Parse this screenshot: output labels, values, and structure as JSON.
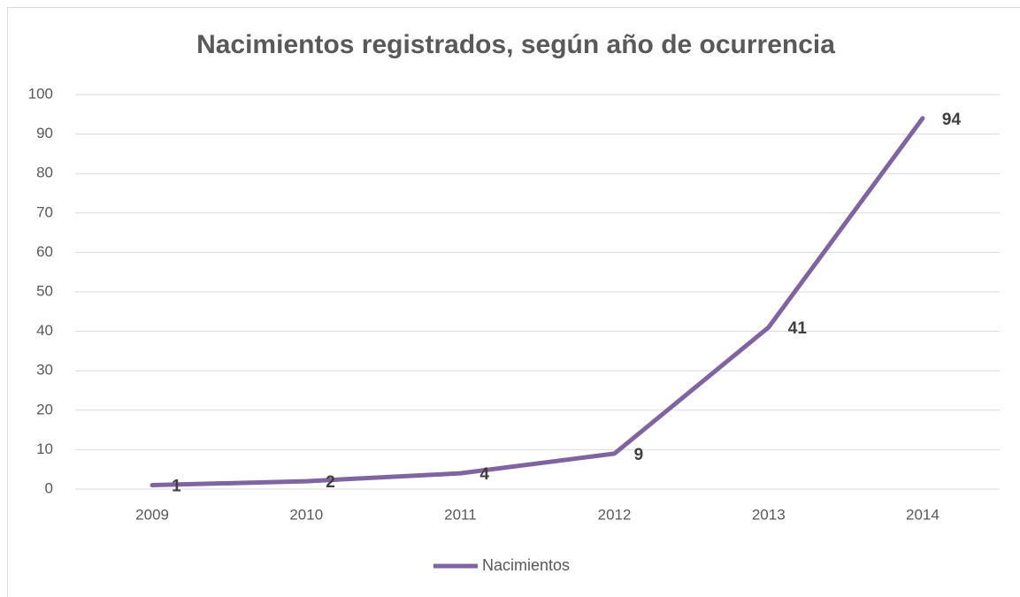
{
  "chart_data": {
    "type": "line",
    "title": "Nacimientos registrados, según año de ocurrencia",
    "categories": [
      "2009",
      "2010",
      "2011",
      "2012",
      "2013",
      "2014"
    ],
    "series": [
      {
        "name": "Nacimientos",
        "color": "#8064a2",
        "values": [
          1,
          2,
          4,
          9,
          41,
          94
        ]
      }
    ],
    "ylim": [
      0,
      100
    ],
    "yticks": [
      0,
      10,
      20,
      30,
      40,
      50,
      60,
      70,
      80,
      90,
      100
    ],
    "grid": true,
    "legend": "bottom"
  }
}
